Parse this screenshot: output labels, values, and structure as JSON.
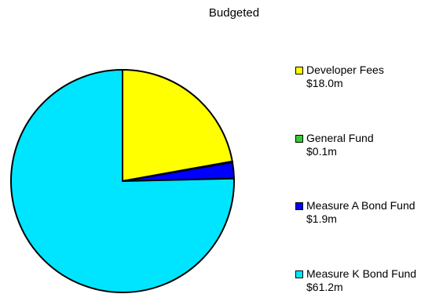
{
  "chart_data": {
    "type": "pie",
    "title": "Budgeted",
    "legend_position": "right",
    "start_angle_deg": 90,
    "direction": "clockwise",
    "series": [
      {
        "name": "Developer Fees",
        "value_label": "$18.0m",
        "value": 18.0,
        "color": "#ffff00"
      },
      {
        "name": "General Fund",
        "value_label": "$0.1m",
        "value": 0.1,
        "color": "#33cc33"
      },
      {
        "name": "Measure A Bond Fund",
        "value_label": "$1.9m",
        "value": 1.9,
        "color": "#0000ff"
      },
      {
        "name": "Measure K Bond Fund",
        "value_label": "$61.2m",
        "value": 61.2,
        "color": "#00e5ff"
      }
    ]
  }
}
